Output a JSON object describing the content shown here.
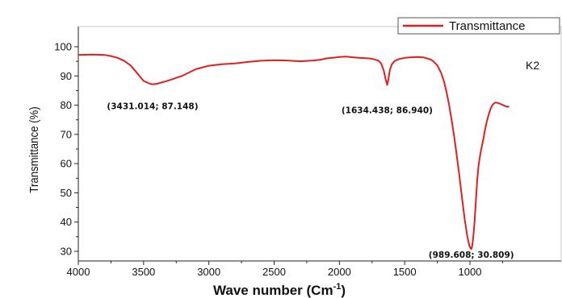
{
  "chart_data": {
    "type": "line",
    "title": "",
    "xlabel": "Wave number (Cm",
    "xlabel_sup": "-1",
    "xlabel_close": ")",
    "ylabel": "Transmittance (%)",
    "xlim": [
      4000,
      650
    ],
    "ylim": [
      26,
      106
    ],
    "x_reversed": true,
    "x_ticks": [
      4000,
      3500,
      3000,
      2500,
      2000,
      1500,
      1000
    ],
    "y_ticks": [
      30,
      40,
      50,
      60,
      70,
      80,
      90,
      100
    ],
    "grid": false,
    "legend_position": "top-right",
    "sample_label": "K2",
    "line_color": "#dd1f1f",
    "series": [
      {
        "name": "Transmittance",
        "x": [
          4000,
          3900,
          3800,
          3750,
          3700,
          3650,
          3600,
          3550,
          3500,
          3450,
          3431,
          3400,
          3350,
          3300,
          3200,
          3100,
          3000,
          2900,
          2800,
          2700,
          2600,
          2500,
          2400,
          2300,
          2200,
          2150,
          2100,
          2050,
          2000,
          1950,
          1900,
          1850,
          1800,
          1750,
          1700,
          1680,
          1660,
          1645,
          1634,
          1625,
          1615,
          1600,
          1580,
          1550,
          1500,
          1450,
          1400,
          1350,
          1300,
          1280,
          1250,
          1220,
          1200,
          1180,
          1160,
          1140,
          1120,
          1100,
          1080,
          1060,
          1040,
          1020,
          1005,
          995,
          990,
          985,
          975,
          965,
          955,
          945,
          935,
          925,
          915,
          905,
          895,
          885,
          870,
          855,
          840,
          825,
          810,
          800,
          790,
          770,
          750,
          730,
          710,
          700
        ],
        "values": [
          97.2,
          97.3,
          97.2,
          96.8,
          96.2,
          95.2,
          93.6,
          91.0,
          88.3,
          87.3,
          87.15,
          87.3,
          87.9,
          88.6,
          90.1,
          92.3,
          93.5,
          94.0,
          94.3,
          94.8,
          95.2,
          95.4,
          95.3,
          95.0,
          95.3,
          95.5,
          96.0,
          96.2,
          96.5,
          96.6,
          96.4,
          96.2,
          96.1,
          95.9,
          95.2,
          94.2,
          91.8,
          88.7,
          86.94,
          88.8,
          91.8,
          93.8,
          95.0,
          95.7,
          96.2,
          96.4,
          96.5,
          96.3,
          95.6,
          95.0,
          93.6,
          91.0,
          88.3,
          84.6,
          80.2,
          74.8,
          69.0,
          62.5,
          55.5,
          48.0,
          41.0,
          35.0,
          32.0,
          31.0,
          30.809,
          31.2,
          34.5,
          40.0,
          47.0,
          54.0,
          59.0,
          62.0,
          64.5,
          66.8,
          69.0,
          71.5,
          74.5,
          77.0,
          79.0,
          80.2,
          80.8,
          80.9,
          80.8,
          80.5,
          80.1,
          79.7,
          79.4,
          79.6
        ]
      }
    ],
    "annotations": [
      {
        "text": "(3431.014; 87.148)",
        "x": 3431.014,
        "y": 87.148
      },
      {
        "text": "(1634.438; 86.940)",
        "x": 1634.438,
        "y": 86.94
      },
      {
        "text": "(989.608; 30.809)",
        "x": 989.608,
        "y": 30.809
      }
    ]
  }
}
